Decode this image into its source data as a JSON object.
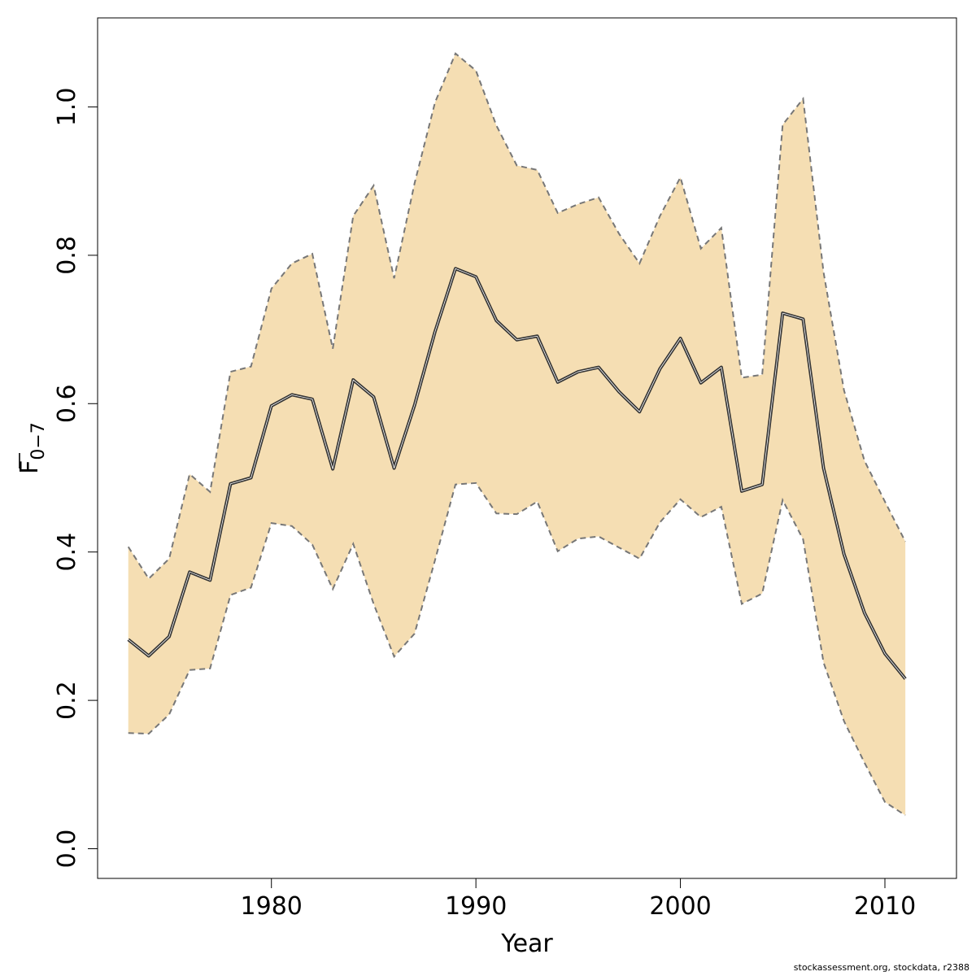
{
  "chart_data": {
    "type": "area",
    "xlabel": "Year",
    "ylabel": {
      "main": "F",
      "subscript": "0−7"
    },
    "xlim": [
      1971.5,
      2013.5
    ],
    "ylim": [
      -0.04,
      1.12
    ],
    "x_ticks": [
      1980,
      1990,
      2000,
      2010
    ],
    "y_ticks": [
      0.0,
      0.2,
      0.4,
      0.6,
      0.8,
      1.0
    ],
    "y_tick_labels": [
      "0.0",
      "0.2",
      "0.4",
      "0.6",
      "0.8",
      "1.0"
    ],
    "band_color": "#F5DEB3",
    "line_color": "#333333",
    "bound_color": "#777777",
    "x": [
      1973,
      1974,
      1975,
      1976,
      1977,
      1978,
      1979,
      1980,
      1981,
      1982,
      1983,
      1984,
      1985,
      1986,
      1987,
      1988,
      1989,
      1990,
      1991,
      1992,
      1993,
      1994,
      1995,
      1996,
      1997,
      1998,
      1999,
      2000,
      2001,
      2002,
      2003,
      2004,
      2005,
      2006,
      2007,
      2008,
      2009,
      2010,
      2011
    ],
    "series": [
      {
        "role": "estimate",
        "values": [
          0.282,
          0.26,
          0.286,
          0.373,
          0.362,
          0.492,
          0.5,
          0.597,
          0.612,
          0.606,
          0.512,
          0.632,
          0.609,
          0.513,
          0.598,
          0.697,
          0.782,
          0.771,
          0.712,
          0.686,
          0.691,
          0.629,
          0.643,
          0.649,
          0.616,
          0.589,
          0.647,
          0.688,
          0.628,
          0.649,
          0.482,
          0.491,
          0.722,
          0.714,
          0.513,
          0.397,
          0.318,
          0.263,
          0.229
        ]
      },
      {
        "role": "upper",
        "values": [
          0.407,
          0.364,
          0.391,
          0.505,
          0.481,
          0.643,
          0.65,
          0.755,
          0.789,
          0.802,
          0.674,
          0.853,
          0.894,
          0.769,
          0.897,
          1.006,
          1.072,
          1.049,
          0.975,
          0.921,
          0.915,
          0.857,
          0.869,
          0.878,
          0.829,
          0.789,
          0.853,
          0.905,
          0.809,
          0.837,
          0.635,
          0.639,
          0.976,
          1.011,
          0.777,
          0.618,
          0.523,
          0.468,
          0.414
        ]
      },
      {
        "role": "lower",
        "values": [
          0.156,
          0.155,
          0.181,
          0.241,
          0.243,
          0.342,
          0.352,
          0.439,
          0.435,
          0.41,
          0.35,
          0.411,
          0.33,
          0.259,
          0.29,
          0.389,
          0.491,
          0.493,
          0.452,
          0.451,
          0.468,
          0.401,
          0.418,
          0.421,
          0.406,
          0.391,
          0.44,
          0.471,
          0.447,
          0.461,
          0.33,
          0.344,
          0.47,
          0.417,
          0.251,
          0.172,
          0.116,
          0.063,
          0.045
        ]
      }
    ]
  },
  "footer": "stockassessment.org, stockdata, r2388"
}
